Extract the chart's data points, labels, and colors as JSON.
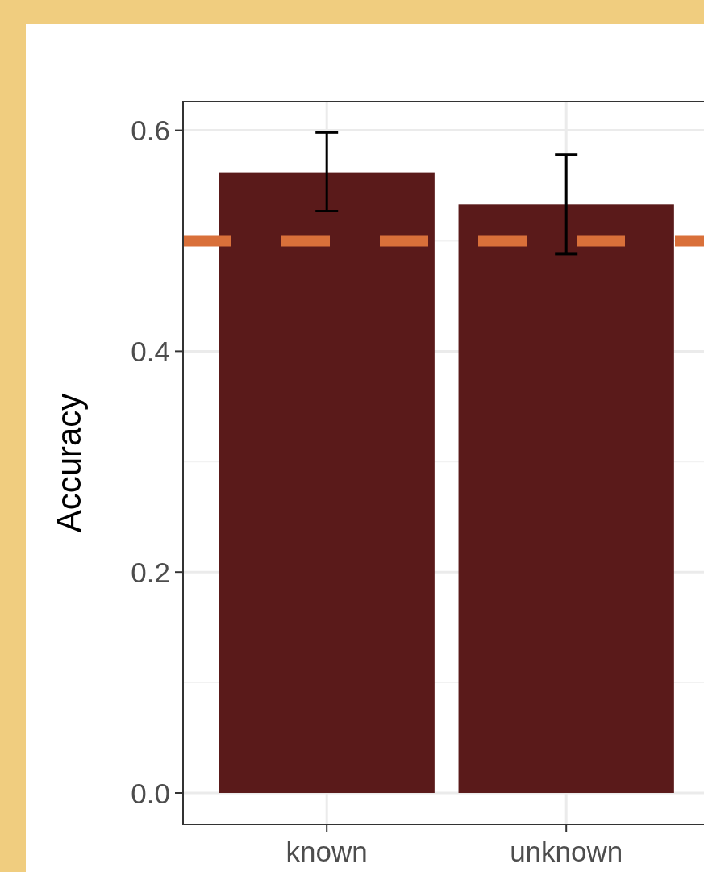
{
  "chart_data": {
    "type": "bar",
    "ylabel": "Accuracy",
    "categories": [
      "known",
      "unknown"
    ],
    "values": [
      0.562,
      0.533
    ],
    "errors": [
      [
        0.527,
        0.598
      ],
      [
        0.488,
        0.578
      ]
    ],
    "color": "#5a1a1a",
    "ylim": [
      -0.0285,
      0.626
    ],
    "yticks": [
      {
        "value": 0,
        "label": "0.0"
      },
      {
        "value": 0.2,
        "label": "0.2"
      },
      {
        "value": 0.4,
        "label": "0.4"
      },
      {
        "value": 0.6,
        "label": "0.6"
      }
    ],
    "grid": true,
    "ref_lines": [
      {
        "axis": "y",
        "value": 0.5,
        "label": null,
        "color": "#d9703a",
        "line_style": "dashed"
      }
    ]
  }
}
